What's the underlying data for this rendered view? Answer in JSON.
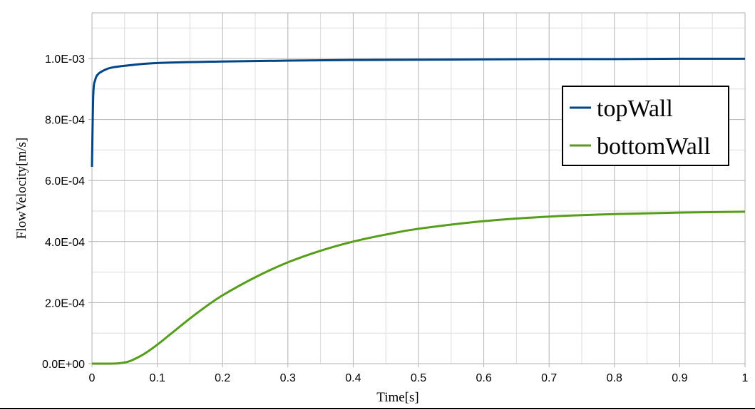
{
  "chart_data": {
    "type": "line",
    "title": "",
    "xlabel": "Time[s]",
    "ylabel": "FlowVelocity[m/s]",
    "xlim": [
      0,
      1
    ],
    "ylim": [
      0,
      0.00115
    ],
    "x_ticks": [
      "0",
      "0.1",
      "0.2",
      "0.3",
      "0.4",
      "0.5",
      "0.6",
      "0.7",
      "0.8",
      "0.9",
      "1"
    ],
    "y_ticks": [
      "0.0E+00",
      "2.0E-04",
      "4.0E-04",
      "6.0E-04",
      "8.0E-04",
      "1.0E-03"
    ],
    "grid": true,
    "legend_position": "upper right",
    "series": [
      {
        "name": "topWall",
        "color": "#004586",
        "x": [
          0,
          0.002,
          0.005,
          0.01,
          0.02,
          0.03,
          0.05,
          0.1,
          0.2,
          0.3,
          0.4,
          0.5,
          0.6,
          0.7,
          0.8,
          0.9,
          1.0
        ],
        "values": [
          0.000645,
          0.00088,
          0.00093,
          0.00095,
          0.000963,
          0.00097,
          0.000976,
          0.000985,
          0.00099,
          0.000993,
          0.000995,
          0.000996,
          0.000997,
          0.000998,
          0.000998,
          0.000999,
          0.000999
        ]
      },
      {
        "name": "bottomWall",
        "color": "#579d1c",
        "x": [
          0,
          0.02,
          0.04,
          0.05,
          0.06,
          0.08,
          0.1,
          0.125,
          0.15,
          0.175,
          0.2,
          0.25,
          0.3,
          0.35,
          0.4,
          0.45,
          0.5,
          0.6,
          0.7,
          0.8,
          0.9,
          1.0
        ],
        "values": [
          0,
          0,
          1e-06,
          4e-06,
          1e-05,
          3.2e-05,
          6.2e-05,
          0.000105,
          0.000148,
          0.000188,
          0.000224,
          0.000283,
          0.000332,
          0.00037,
          0.0004,
          0.000423,
          0.000442,
          0.000467,
          0.000482,
          0.00049,
          0.000495,
          0.000498
        ]
      }
    ]
  },
  "legend": {
    "items": [
      {
        "label": "topWall",
        "color": "#004586"
      },
      {
        "label": "bottomWall",
        "color": "#579d1c"
      }
    ]
  },
  "colors": {
    "major_grid": "#b3b3b3",
    "minor_grid": "#dddddd",
    "axis": "#b3b3b3"
  }
}
